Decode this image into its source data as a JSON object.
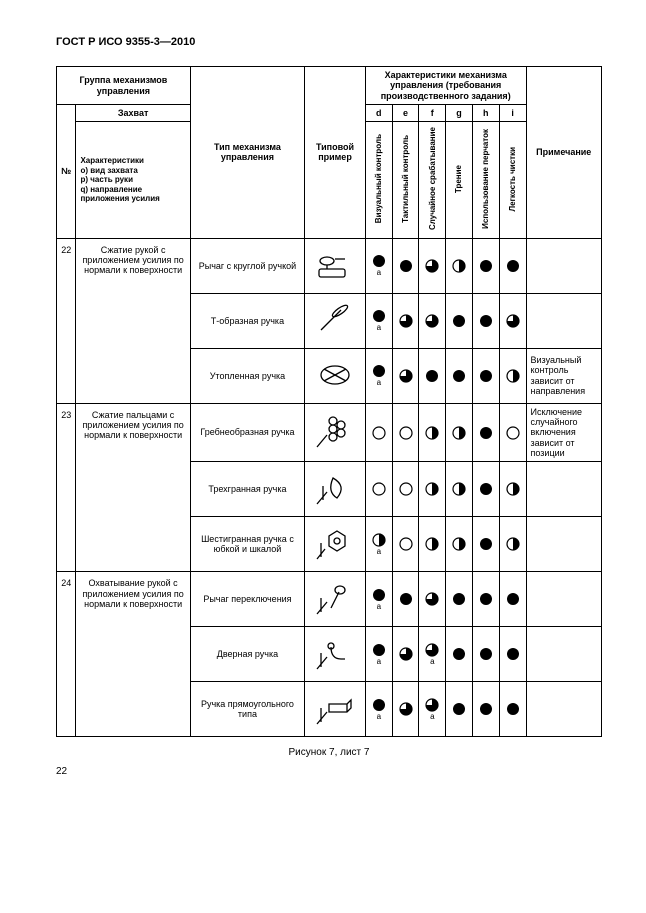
{
  "doc_title": "ГОСТ Р ИСО 9355-3—2010",
  "header": {
    "group": "Группа механизмов управления",
    "num": "№",
    "grip": "Захват",
    "char_sub": "Характеристики\no) вид захвата\np) часть руки\nq) направление приложения усилия",
    "type": "Тип механизма управления",
    "example": "Типовой пример",
    "mech_char": "Характеристики механизма управления (требования производственного задания)",
    "cols": [
      "d",
      "e",
      "f",
      "g",
      "h",
      "i"
    ],
    "col_labels": [
      "Визуальный контроль",
      "Тактильный контроль",
      "Случайное срабатывание",
      "Трение",
      "Использование перчаток",
      "Легкость чистки"
    ],
    "note": "Примечание"
  },
  "rows": [
    {
      "num": "22",
      "grip": "Сжатие рукой с приложением усилия по нормали к поверхности",
      "sub": [
        {
          "type": "Рычаг с круглой ручкой",
          "icon": "lever-round",
          "vals": [
            {
              "f": 1,
              "s": "a"
            },
            {
              "f": 1
            },
            {
              "f": 0.75
            },
            {
              "f": 0.5
            },
            {
              "f": 1
            },
            {
              "f": 1
            }
          ],
          "note": ""
        },
        {
          "type": "Т-образная ручка",
          "icon": "t-handle",
          "vals": [
            {
              "f": 1,
              "s": "a"
            },
            {
              "f": 0.75
            },
            {
              "f": 0.75
            },
            {
              "f": 1
            },
            {
              "f": 1
            },
            {
              "f": 0.75
            }
          ],
          "note": ""
        },
        {
          "type": "Утопленная ручка",
          "icon": "recessed",
          "vals": [
            {
              "f": 1,
              "s": "a"
            },
            {
              "f": 0.75
            },
            {
              "f": 1
            },
            {
              "f": 1
            },
            {
              "f": 1
            },
            {
              "f": 0.5
            }
          ],
          "note": "Визуальный контроль зависит от направления"
        }
      ]
    },
    {
      "num": "23",
      "grip": "Сжатие пальцами с приложением усилия по нормали к поверхности",
      "sub": [
        {
          "type": "Гребнеобразная ручка",
          "icon": "comb",
          "vals": [
            {
              "f": 0
            },
            {
              "f": 0
            },
            {
              "f": 0.5
            },
            {
              "f": 0.5
            },
            {
              "f": 1
            },
            {
              "f": 0
            }
          ],
          "note": "Исключение случайного включения зависит от позиции"
        },
        {
          "type": "Трехгранная ручка",
          "icon": "tri",
          "vals": [
            {
              "f": 0
            },
            {
              "f": 0
            },
            {
              "f": 0.5
            },
            {
              "f": 0.5
            },
            {
              "f": 1
            },
            {
              "f": 0.5
            }
          ],
          "note": ""
        },
        {
          "type": "Шестигранная ручка с юбкой и шкалой",
          "icon": "hex",
          "vals": [
            {
              "f": 0.5,
              "s": "a"
            },
            {
              "f": 0
            },
            {
              "f": 0.5
            },
            {
              "f": 0.5
            },
            {
              "f": 1
            },
            {
              "f": 0.5
            }
          ],
          "note": ""
        }
      ]
    },
    {
      "num": "24",
      "grip": "Охватывание рукой с приложением усилия по нормали к поверхности",
      "sub": [
        {
          "type": "Рычаг переключения",
          "icon": "shift",
          "vals": [
            {
              "f": 1,
              "s": "a"
            },
            {
              "f": 1
            },
            {
              "f": 0.75
            },
            {
              "f": 1
            },
            {
              "f": 1
            },
            {
              "f": 1
            }
          ],
          "note": ""
        },
        {
          "type": "Дверная ручка",
          "icon": "door",
          "vals": [
            {
              "f": 1,
              "s": "a"
            },
            {
              "f": 0.75
            },
            {
              "f": 0.75,
              "s": "a"
            },
            {
              "f": 1
            },
            {
              "f": 1
            },
            {
              "f": 1
            }
          ],
          "note": ""
        },
        {
          "type": "Ручка прямоугольного типа",
          "icon": "rect",
          "vals": [
            {
              "f": 1,
              "s": "a"
            },
            {
              "f": 0.75
            },
            {
              "f": 0.75,
              "s": "a"
            },
            {
              "f": 1
            },
            {
              "f": 1
            },
            {
              "f": 1
            }
          ],
          "note": ""
        }
      ]
    }
  ],
  "caption": "Рисунок 7, лист 7",
  "page_num": "22",
  "colors": {
    "black": "#000000",
    "white": "#ffffff"
  },
  "pie_radius": 6
}
